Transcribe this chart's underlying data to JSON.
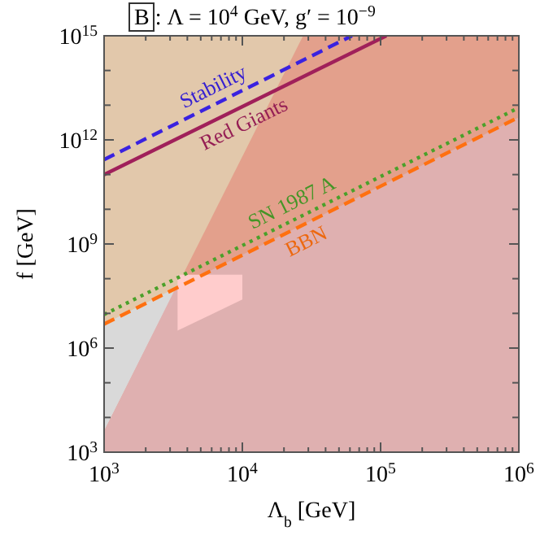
{
  "chart_data": {
    "type": "line",
    "title": "B : Λ = 10$^{4}$ GeV, g′ = 10$^{−9}$",
    "xlabel": "Λ$_{b}$ [GeV]",
    "ylabel": "f [GeV]",
    "log": "xy",
    "xlim": [
      1000,
      1000000
    ],
    "ylim": [
      1000,
      1000000000000000
    ],
    "xticks": [
      {
        "value": 1000,
        "label": "10$^{3}$"
      },
      {
        "value": 2000,
        "label": null
      },
      {
        "value": 3000,
        "label": null
      },
      {
        "value": 4000,
        "label": null
      },
      {
        "value": 5000,
        "label": null
      },
      {
        "value": 6000,
        "label": null
      },
      {
        "value": 7000,
        "label": null
      },
      {
        "value": 8000,
        "label": null
      },
      {
        "value": 9000,
        "label": null
      },
      {
        "value": 10000,
        "label": "10$^{4}$"
      },
      {
        "value": 20000,
        "label": null
      },
      {
        "value": 30000,
        "label": null
      },
      {
        "value": 40000,
        "label": null
      },
      {
        "value": 50000,
        "label": null
      },
      {
        "value": 60000,
        "label": null
      },
      {
        "value": 70000,
        "label": null
      },
      {
        "value": 80000,
        "label": null
      },
      {
        "value": 90000,
        "label": null
      },
      {
        "value": 100000,
        "label": "10$^{5}$"
      },
      {
        "value": 200000,
        "label": null
      },
      {
        "value": 300000,
        "label": null
      },
      {
        "value": 400000,
        "label": null
      },
      {
        "value": 500000,
        "label": null
      },
      {
        "value": 600000,
        "label": null
      },
      {
        "value": 700000,
        "label": null
      },
      {
        "value": 800000,
        "label": null
      },
      {
        "value": 900000,
        "label": null
      },
      {
        "value": 1000000,
        "label": "10$^{6}$"
      }
    ],
    "yticks": [
      {
        "value": 1000,
        "label": "10$^{3}$"
      },
      {
        "value": 10000,
        "label": null
      },
      {
        "value": 100000,
        "label": null
      },
      {
        "value": 1000000,
        "label": "10$^{6}$"
      },
      {
        "value": 10000000,
        "label": null
      },
      {
        "value": 100000000,
        "label": null
      },
      {
        "value": 1000000000,
        "label": "10$^{9}$"
      },
      {
        "value": 10000000000,
        "label": null
      },
      {
        "value": 100000000000,
        "label": null
      },
      {
        "value": 1000000000000,
        "label": "10$^{12}$"
      },
      {
        "value": 10000000000000,
        "label": null
      },
      {
        "value": 100000000000000,
        "label": null
      },
      {
        "value": 1000000000000000,
        "label": "10$^{15}$"
      }
    ],
    "series": [
      {
        "type": "area",
        "color": "#e2c8ab",
        "x": [
          1000,
          27500
        ],
        "values": [
          1000000000000000.0,
          1000000000000000.0
        ]
      },
      {
        "type": "area",
        "color": "#d9d9d9",
        "x": [
          1000,
          3300
        ],
        "values": [
          4900000.0,
          54000000.0
        ]
      },
      {
        "type": "area",
        "color": "#e3a08c",
        "x": [
          1000,
          27500,
          1000000
        ],
        "values": [
          4000,
          1000000000000000.0,
          1000000000000000.0
        ]
      },
      {
        "type": "area",
        "color": "#dfb0b0",
        "x": [
          1000,
          3300,
          1000000
        ],
        "values": [
          4000,
          54000000.0,
          4500000000000.0
        ]
      },
      {
        "type": "area",
        "color": "#ffcccc",
        "x": [
          3400,
          10000,
          10000,
          3400
        ],
        "values": [
          130000000.0,
          130000000.0,
          25000000.0,
          3200000.0
        ]
      },
      {
        "name": "Stability",
        "color": "#3a22e0",
        "line_style": "dashed",
        "x": [
          1000,
          62000
        ],
        "values": [
          270000000000.0,
          1000000000000000.0
        ]
      },
      {
        "name": "Red Giants",
        "color": "#a0205a",
        "line_style": "solid",
        "x": [
          1000,
          110000
        ],
        "values": [
          100000000000.0,
          1000000000000000.0
        ]
      },
      {
        "name": "SN 1987 A",
        "color": "#4aa02a",
        "line_style": "dotted",
        "x": [
          1000,
          1000000
        ],
        "values": [
          9300000.0,
          8500000000000.0
        ]
      },
      {
        "name": "BBN",
        "color": "#ff7010",
        "line_style": "dashed",
        "x": [
          1000,
          1000000
        ],
        "values": [
          4900000.0,
          4500000000000.0
        ]
      }
    ]
  }
}
